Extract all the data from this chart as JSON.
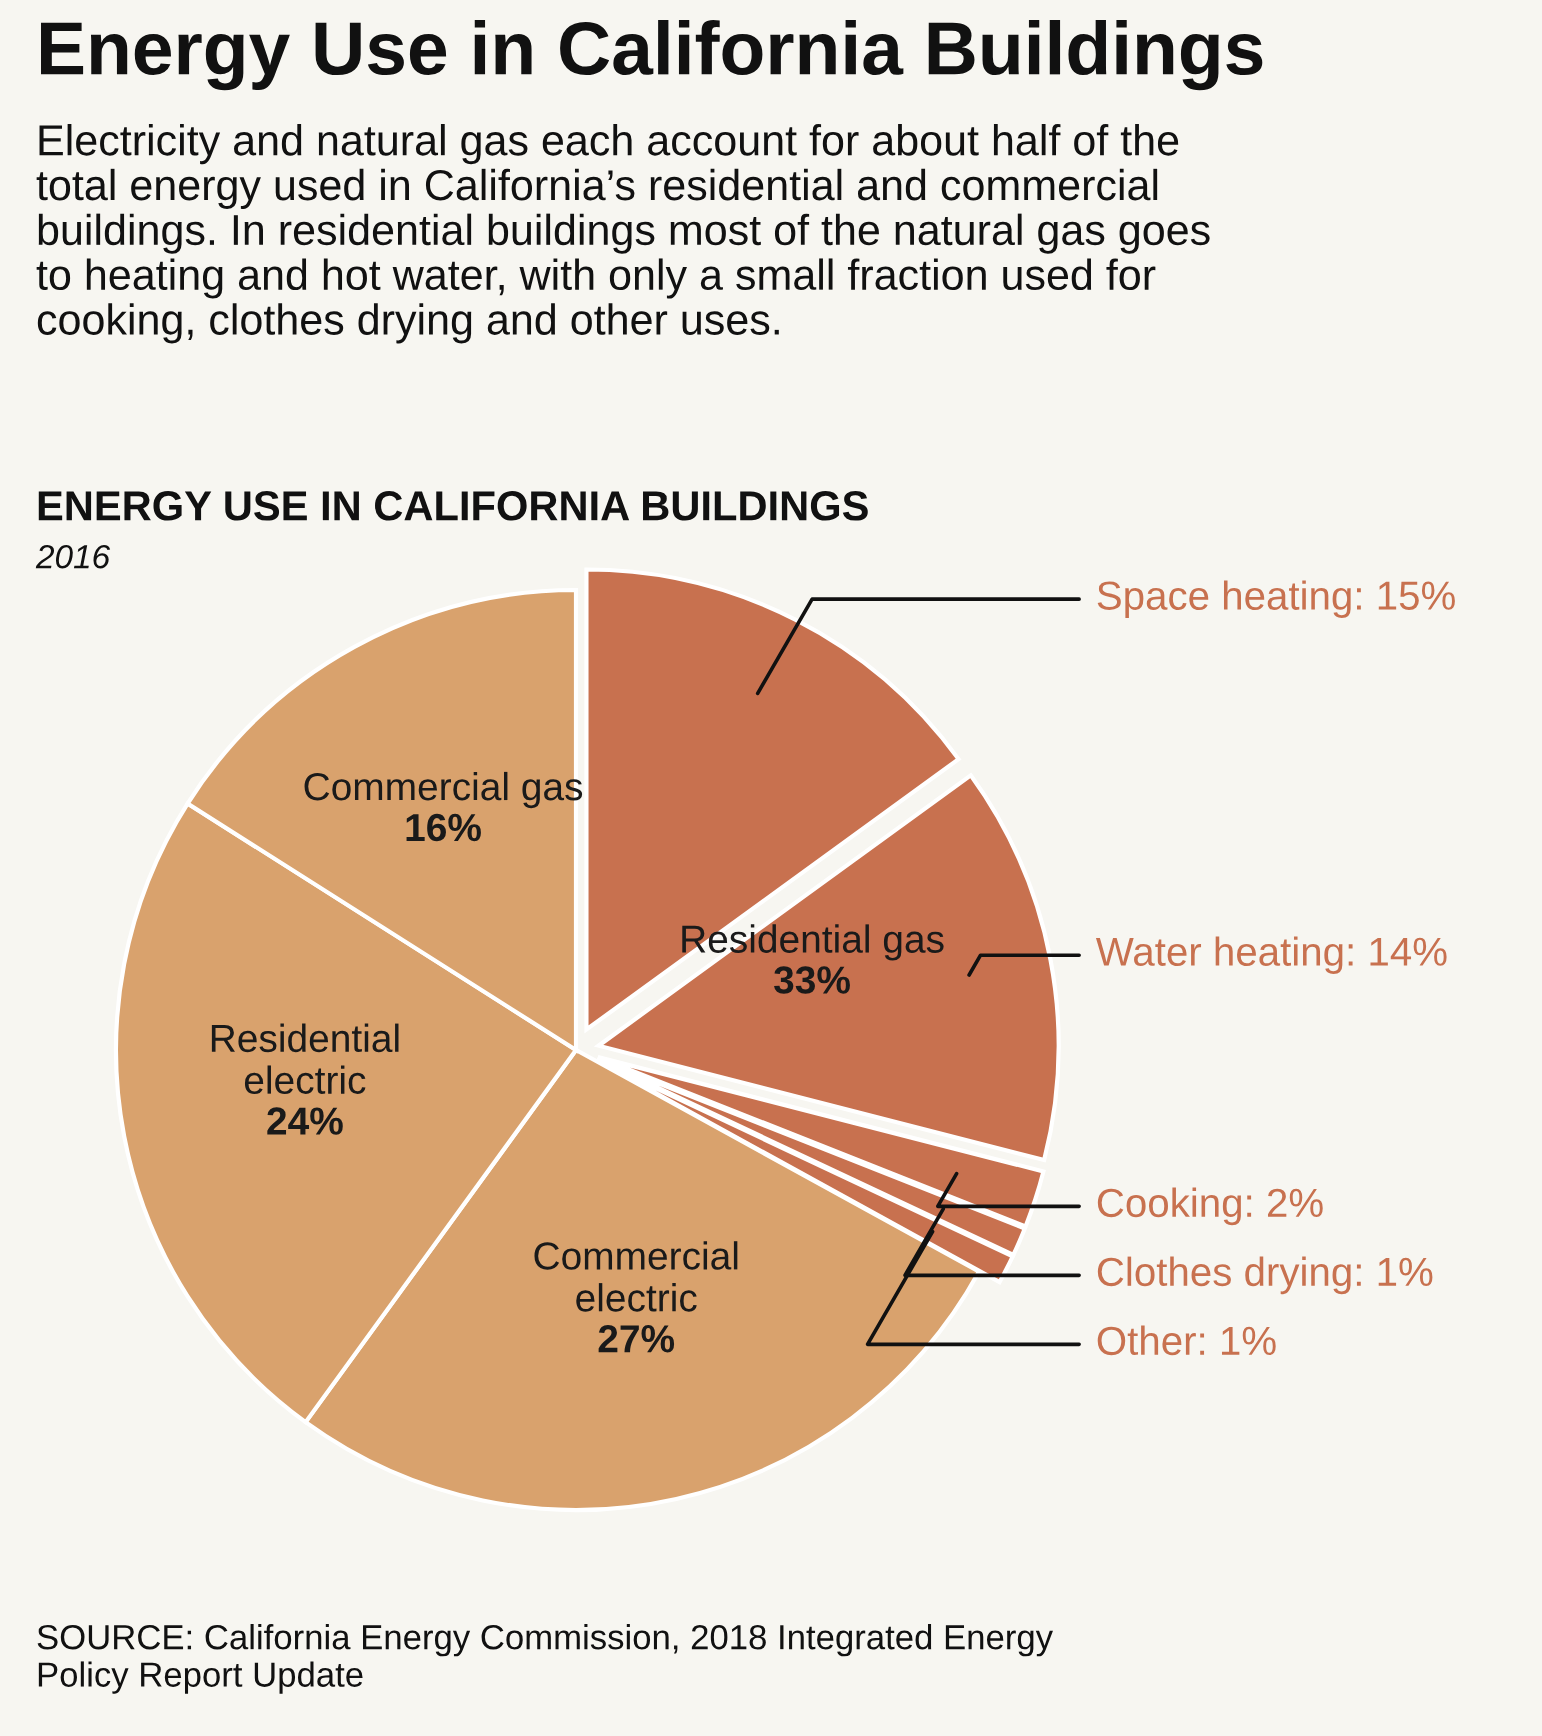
{
  "chart_data": {
    "type": "pie",
    "title": "Energy Use in California Buildings",
    "subtitle": "Electricity and natural gas each account for about half of the\ntotal energy used in California’s residential and commercial\nbuildings. In residential buildings most of the natural gas goes\nto heating and hot water, with only a small fraction used for\ncooking, clothes drying and other uses.",
    "categories": [
      "Space heating",
      "Water heating",
      "Cooking",
      "Clothes drying",
      "Other",
      "Commercial electric",
      "Residential electric",
      "Commercial gas"
    ],
    "values": [
      15,
      14,
      2,
      1,
      1,
      27,
      24,
      16
    ],
    "value_labels": [
      "15%",
      "14%",
      "2%",
      "1%",
      "1%",
      "27%",
      "24%",
      "16%"
    ],
    "colors": [
      "#c8714f",
      "#c8714f",
      "#c8714f",
      "#c8714f",
      "#c8714f",
      "#d9a26d",
      "#d9a26d",
      "#d9a26d"
    ],
    "annotations": [
      "ENERGY USE IN CALIFORNIA BUILDINGS",
      "2016",
      "Residential gas",
      "33%",
      "SOURCE: California Energy Commission, 2018 Integrated Energy\nPolicy Report Update"
    ],
    "legend": false
  }
}
